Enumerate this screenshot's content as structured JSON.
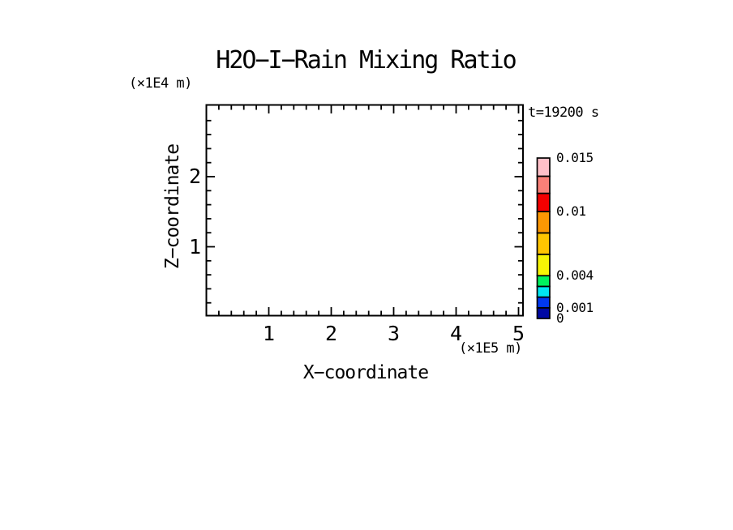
{
  "page": {
    "background": "#FFFFFF",
    "ink": "#000000"
  },
  "chart_data": {
    "type": "heatmap",
    "title": "H2O−I−Rain Mixing Ratio",
    "annotation": "t=19200 s",
    "xlabel": "X−coordinate",
    "ylabel": "Z−coordinate",
    "x_unit_label": "(×1E5 m)",
    "y_unit_label": "(×1E4 m)",
    "grid": false,
    "plot_area_empty": true,
    "xaxis": {
      "min": 0,
      "max": 5.07,
      "major_ticks": [
        1,
        2,
        3,
        4,
        5
      ],
      "tick_labels": [
        "1",
        "2",
        "3",
        "4",
        "5"
      ],
      "minor_tick_interval": 0.2
    },
    "yaxis": {
      "min": 0,
      "max": 3.0,
      "major_ticks": [
        1,
        2
      ],
      "tick_labels": [
        "1",
        "2"
      ],
      "minor_tick_interval": 0.2
    },
    "colorbar": {
      "position": "right",
      "min": 0,
      "max": 0.015,
      "cells": [
        {
          "from": 0,
          "to": 0.001,
          "color": "#0009A3"
        },
        {
          "from": 0.001,
          "to": 0.002,
          "color": "#0139F2"
        },
        {
          "from": 0.002,
          "to": 0.003,
          "color": "#00E7F2"
        },
        {
          "from": 0.003,
          "to": 0.004,
          "color": "#00F25E"
        },
        {
          "from": 0.004,
          "to": 0.006,
          "color": "#F6F405"
        },
        {
          "from": 0.006,
          "to": 0.008,
          "color": "#FFC501"
        },
        {
          "from": 0.008,
          "to": 0.01,
          "color": "#FC9803"
        },
        {
          "from": 0.01,
          "to": 0.0117,
          "color": "#F40000"
        },
        {
          "from": 0.0117,
          "to": 0.0133,
          "color": "#F98078"
        },
        {
          "from": 0.0133,
          "to": 0.015,
          "color": "#FFC0C8"
        }
      ],
      "labels": [
        {
          "value": 0.015,
          "text": "0.015"
        },
        {
          "value": 0.01,
          "text": "0.01"
        },
        {
          "value": 0.004,
          "text": "0.004"
        },
        {
          "value": 0.001,
          "text": "0.001"
        },
        {
          "value": 0,
          "text": "0"
        }
      ]
    }
  }
}
